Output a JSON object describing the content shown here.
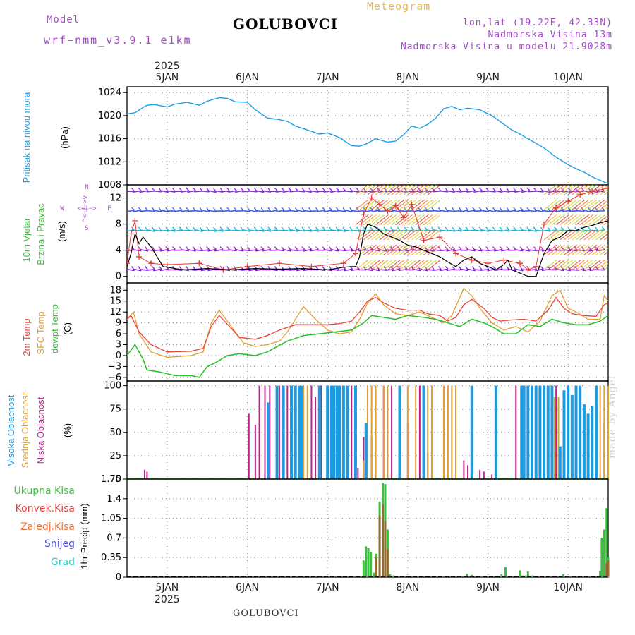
{
  "header": {
    "model_label": "Model",
    "model_value": "wrf−nmm_v3.9.1  e1km",
    "title": "GOLUBOVCI",
    "meteogram": "Meteogram",
    "coords": "lon,lat (19.22E, 42.33N)",
    "elevation": "Nadmorska Visina 13m",
    "model_elevation": "Nadmorska Visina u modelu 21.9028m",
    "footer_title": "GOLUBOVCI",
    "credit": "made by Angel"
  },
  "time_axis": {
    "year": "2025",
    "days": [
      "5JAN",
      "6JAN",
      "7JAN",
      "8JAN",
      "9JAN",
      "10JAN"
    ],
    "day_positions": [
      0.5,
      1.5,
      2.5,
      3.5,
      4.5,
      5.5
    ],
    "range_days": [
      0,
      6
    ]
  },
  "colors": {
    "pressure": "#1ea0e6",
    "wind_speed": "#000000",
    "gust": "#e83a3a",
    "temp_2m": "#e8453c",
    "sfc_temp": "#e0a030",
    "dewpoint": "#26c026",
    "cloud_high": "#1e9be0",
    "cloud_mid": "#e0a030",
    "cloud_low": "#c0208a",
    "precip_total": "#3cbf3c",
    "precip_conv": "#e84040",
    "precip_frz": "#f07030",
    "snow": "#5050e0",
    "hail": "#30c8c8",
    "grid": "#999999"
  },
  "chart_data": [
    {
      "type": "line",
      "panel": "pressure",
      "labels": [
        "Pritisak na nivou mora",
        "(hPa)"
      ],
      "yticks": [
        "1008",
        "1012",
        "1016",
        "1020",
        "1024"
      ],
      "ylim": [
        1008,
        1025
      ],
      "series": [
        {
          "x": [
            0.0,
            0.1,
            0.2,
            0.25,
            0.35,
            0.5,
            0.6,
            0.75,
            0.9,
            1.0,
            1.15,
            1.25,
            1.35,
            1.5,
            1.6,
            1.75,
            1.9,
            2.0,
            2.1,
            2.25,
            2.4,
            2.5,
            2.65,
            2.8,
            2.9,
            3.0,
            3.1,
            3.25,
            3.35,
            3.45,
            3.55,
            3.65,
            3.75,
            3.85,
            3.95,
            4.05,
            4.15,
            4.25,
            4.4,
            4.55,
            4.7,
            4.8,
            4.9,
            5.0,
            5.1,
            5.2,
            5.35,
            5.5,
            5.6,
            5.7,
            5.8,
            5.9,
            6.0
          ],
          "y": [
            1020.3,
            1020.5,
            1021.4,
            1021.8,
            1021.9,
            1021.5,
            1022.0,
            1022.3,
            1021.8,
            1022.5,
            1023.1,
            1023.0,
            1022.4,
            1022.3,
            1021.0,
            1019.6,
            1019.3,
            1019.0,
            1018.2,
            1017.5,
            1016.8,
            1017.0,
            1016.2,
            1014.8,
            1014.7,
            1015.2,
            1016.0,
            1015.4,
            1015.6,
            1016.7,
            1018.2,
            1017.8,
            1018.5,
            1019.6,
            1021.2,
            1021.6,
            1021.0,
            1021.3,
            1021.0,
            1020.0,
            1018.5,
            1017.5,
            1016.8,
            1016.0,
            1015.2,
            1014.4,
            1012.8,
            1011.5,
            1010.8,
            1010.2,
            1009.4,
            1008.8,
            1008.2
          ]
        }
      ]
    },
    {
      "type": "line",
      "panel": "wind",
      "labels": [
        "10m Vjetar",
        "Brzina i Pravac",
        "(m/s)"
      ],
      "compass": {
        "north": "N",
        "south": "S",
        "east": "E",
        "west": "W",
        "arrows_ns": "^<−|−>v",
        "arrows_we": "<−|−>"
      },
      "yticks": [
        "0",
        "4",
        "8",
        "12"
      ],
      "ylim": [
        -1,
        14
      ],
      "series": [
        {
          "name": "speed",
          "x": [
            0.0,
            0.05,
            0.1,
            0.15,
            0.2,
            0.3,
            0.45,
            0.7,
            1.0,
            1.3,
            1.6,
            1.9,
            2.2,
            2.5,
            2.7,
            2.8,
            2.85,
            2.9,
            2.95,
            3.0,
            3.1,
            3.2,
            3.3,
            3.4,
            3.5,
            3.6,
            3.7,
            3.8,
            3.9,
            4.0,
            4.1,
            4.2,
            4.3,
            4.4,
            4.5,
            4.6,
            4.7,
            4.75,
            4.8,
            4.9,
            5.0,
            5.1,
            5.2,
            5.3,
            5.4,
            5.5,
            5.6,
            5.7,
            5.8,
            5.9,
            6.0
          ],
          "y": [
            1.5,
            3.5,
            6.5,
            5.0,
            6.0,
            4.5,
            1.5,
            1.0,
            1.2,
            1.0,
            1.2,
            1.1,
            1.2,
            1.0,
            1.4,
            1.5,
            1.5,
            3.0,
            6.5,
            8.0,
            7.5,
            6.5,
            6.0,
            5.5,
            4.8,
            4.5,
            4.0,
            3.5,
            3.0,
            2.2,
            1.5,
            2.5,
            3.0,
            2.0,
            1.5,
            1.0,
            1.8,
            2.5,
            1.0,
            0.5,
            0.0,
            0.0,
            3.5,
            5.5,
            6.0,
            7.0,
            7.0,
            7.5,
            7.8,
            8.2,
            8.5
          ]
        },
        {
          "name": "gust",
          "x": [
            0.0,
            0.05,
            0.1,
            0.15,
            0.3,
            0.5,
            0.9,
            1.2,
            1.5,
            1.9,
            2.3,
            2.7,
            2.85,
            2.95,
            3.05,
            3.15,
            3.25,
            3.35,
            3.45,
            3.55,
            3.7,
            3.9,
            4.1,
            4.3,
            4.5,
            4.7,
            4.9,
            5.0,
            5.1,
            5.2,
            5.35,
            5.5,
            5.65,
            5.8,
            6.0
          ],
          "y": [
            2.0,
            6.5,
            8.5,
            3.0,
            2.0,
            1.8,
            2.0,
            1.0,
            1.5,
            2.0,
            1.5,
            2.0,
            3.5,
            9.5,
            12.0,
            11.0,
            10.0,
            10.8,
            9.0,
            11.0,
            5.5,
            6.0,
            3.5,
            2.5,
            2.0,
            2.5,
            2.0,
            1.0,
            1.5,
            8.0,
            10.5,
            11.5,
            12.5,
            13.0,
            13.5
          ]
        }
      ]
    },
    {
      "type": "line",
      "panel": "temperature",
      "labels": [
        "2m Temp",
        "SFC Temp",
        "dewpt Temp",
        "(C)"
      ],
      "yticks": [
        "−6",
        "−3",
        "0",
        "3",
        "6",
        "9",
        "12",
        "15",
        "18"
      ],
      "ylim": [
        -7,
        20
      ],
      "series": [
        {
          "name": "2m Temp",
          "x": [
            0.0,
            0.05,
            0.15,
            0.3,
            0.5,
            0.8,
            0.95,
            1.05,
            1.15,
            1.3,
            1.4,
            1.6,
            1.75,
            1.9,
            2.1,
            2.3,
            2.5,
            2.65,
            2.8,
            2.9,
            3.0,
            3.1,
            3.2,
            3.35,
            3.5,
            3.65,
            3.75,
            3.9,
            4.0,
            4.1,
            4.2,
            4.3,
            4.45,
            4.55,
            4.65,
            4.8,
            4.95,
            5.1,
            5.25,
            5.35,
            5.45,
            5.55,
            5.7,
            5.85,
            5.95,
            6.0
          ],
          "y": [
            10.0,
            11.0,
            6.5,
            3.0,
            1.0,
            1.2,
            2.0,
            8.0,
            11.0,
            7.5,
            5.0,
            4.5,
            5.5,
            7.0,
            8.5,
            8.5,
            8.5,
            8.8,
            9.5,
            12.0,
            15.0,
            16.0,
            14.5,
            13.0,
            12.5,
            12.5,
            11.5,
            11.0,
            9.5,
            10.5,
            14.0,
            15.5,
            13.0,
            10.5,
            9.5,
            9.8,
            10.0,
            9.5,
            12.5,
            16.0,
            13.0,
            11.5,
            11.0,
            10.8,
            14.0,
            14.5
          ]
        },
        {
          "name": "SFC Temp",
          "x": [
            0.0,
            0.08,
            0.15,
            0.3,
            0.5,
            0.8,
            0.95,
            1.05,
            1.15,
            1.3,
            1.45,
            1.6,
            1.75,
            1.9,
            2.0,
            2.2,
            2.35,
            2.5,
            2.65,
            2.8,
            2.9,
            3.0,
            3.1,
            3.2,
            3.35,
            3.5,
            3.65,
            3.8,
            3.95,
            4.05,
            4.2,
            4.3,
            4.4,
            4.55,
            4.7,
            4.85,
            5.0,
            5.15,
            5.3,
            5.4,
            5.5,
            5.6,
            5.75,
            5.9,
            5.95,
            6.0
          ],
          "y": [
            10.0,
            12.0,
            6.0,
            1.0,
            -0.5,
            0.0,
            1.0,
            9.0,
            12.5,
            8.0,
            3.5,
            2.5,
            3.0,
            4.0,
            6.5,
            13.5,
            10.0,
            7.0,
            6.0,
            6.5,
            10.0,
            14.5,
            17.0,
            14.0,
            11.5,
            11.0,
            12.0,
            10.5,
            9.0,
            11.0,
            18.5,
            16.5,
            13.0,
            9.0,
            7.0,
            8.0,
            6.5,
            9.5,
            16.5,
            18.0,
            13.0,
            12.0,
            10.0,
            10.0,
            16.5,
            15.0
          ]
        },
        {
          "name": "dewpt Temp",
          "x": [
            0.0,
            0.1,
            0.2,
            0.25,
            0.4,
            0.6,
            0.8,
            0.9,
            1.0,
            1.1,
            1.25,
            1.4,
            1.6,
            1.75,
            2.0,
            2.2,
            2.4,
            2.6,
            2.8,
            2.95,
            3.05,
            3.2,
            3.35,
            3.5,
            3.7,
            3.85,
            4.0,
            4.15,
            4.3,
            4.45,
            4.55,
            4.7,
            4.85,
            5.0,
            5.15,
            5.3,
            5.45,
            5.6,
            5.75,
            5.9,
            6.0
          ],
          "y": [
            0.0,
            3.0,
            -1.0,
            -4.0,
            -4.5,
            -5.5,
            -5.5,
            -6.0,
            -3.0,
            -2.0,
            0.0,
            0.5,
            0.0,
            1.0,
            4.0,
            5.5,
            6.0,
            6.5,
            7.0,
            9.0,
            11.0,
            10.5,
            10.0,
            11.0,
            10.5,
            10.0,
            9.0,
            8.0,
            10.0,
            9.0,
            8.0,
            6.0,
            6.0,
            8.5,
            8.0,
            10.0,
            9.0,
            8.5,
            8.5,
            9.5,
            11.0
          ]
        }
      ]
    },
    {
      "type": "bar",
      "panel": "cloud",
      "labels": [
        "Visoka Oblacnost",
        "Srednja Oblacnost",
        "Niska Oblacnost",
        "(%)"
      ],
      "yticks": [
        "0",
        "25",
        "50",
        "75",
        "100"
      ],
      "ylim": [
        0,
        105
      ],
      "series": [
        {
          "name": "Niska Oblacnost",
          "x": [
            0.22,
            0.25,
            1.52,
            1.6,
            1.65,
            1.72,
            1.78,
            1.9,
            2.0,
            2.2,
            2.3,
            2.35,
            2.42,
            2.5,
            2.65,
            2.8,
            2.88,
            2.95,
            3.05,
            3.1,
            3.2,
            3.3,
            3.4,
            3.5,
            3.65,
            3.75,
            3.95,
            4.0,
            4.2,
            4.25,
            4.3,
            4.4,
            4.45,
            4.55,
            4.85,
            4.95,
            5.2,
            5.25,
            5.3,
            5.35,
            5.5,
            5.95
          ],
          "y": [
            10,
            8,
            70,
            58,
            100,
            100,
            100,
            100,
            100,
            100,
            100,
            88,
            100,
            100,
            100,
            100,
            12,
            45,
            45,
            100,
            100,
            100,
            28,
            60,
            100,
            28,
            100,
            100,
            20,
            15,
            10,
            10,
            8,
            5,
            100,
            100,
            100,
            100,
            100,
            100,
            75,
            60
          ]
        },
        {
          "name": "Srednja Oblacnost",
          "x": [
            1.88,
            2.2,
            2.25,
            2.95,
            3.0,
            3.05,
            3.1,
            3.2,
            3.25,
            3.4,
            3.5,
            3.6,
            3.7,
            3.75,
            3.8,
            3.95,
            4.0,
            4.05,
            4.1,
            5.33,
            5.38,
            5.85,
            5.9,
            5.95,
            6.0
          ],
          "y": [
            100,
            100,
            100,
            20,
            100,
            100,
            100,
            100,
            100,
            100,
            100,
            100,
            100,
            100,
            100,
            100,
            100,
            100,
            100,
            88,
            88,
            100,
            100,
            100,
            100
          ]
        },
        {
          "name": "Visoka Oblacnost",
          "x": [
            1.76,
            1.87,
            1.95,
            2.05,
            2.1,
            2.15,
            2.18,
            2.4,
            2.5,
            2.55,
            2.58,
            2.62,
            2.65,
            2.7,
            2.75,
            2.85,
            2.98,
            3.4,
            3.7,
            4.3,
            4.6,
            4.92,
            4.95,
            5.0,
            5.05,
            5.1,
            5.15,
            5.2,
            5.25,
            5.3,
            5.4,
            5.45,
            5.5,
            5.55,
            5.6,
            5.65,
            5.7,
            5.75,
            5.8,
            5.85
          ],
          "y": [
            82,
            100,
            100,
            100,
            100,
            100,
            100,
            100,
            100,
            100,
            100,
            100,
            100,
            100,
            100,
            100,
            60,
            100,
            100,
            100,
            100,
            100,
            100,
            100,
            100,
            100,
            100,
            100,
            100,
            100,
            35,
            95,
            100,
            90,
            100,
            100,
            80,
            70,
            78,
            100
          ]
        }
      ]
    },
    {
      "type": "bar",
      "panel": "precipitation",
      "labels": [
        "Ukupna Kisa",
        "Konvek.Kisa",
        "Zaledj.Kisa",
        "Snijeg",
        "Grad",
        "1hr Precip (mm)"
      ],
      "yticks": [
        "0",
        "0.35",
        "0.7",
        "1.05",
        "1.4",
        "1.75"
      ],
      "ylim": [
        0,
        1.75
      ],
      "series": [
        {
          "name": "Ukupna Kisa",
          "x": [
            2.95,
            2.98,
            3.01,
            3.04,
            3.08,
            3.11,
            3.15,
            3.19,
            3.22,
            3.25,
            3.28,
            3.32,
            4.24,
            4.3,
            4.67,
            4.72,
            4.9,
            4.93,
            4.97,
            5.0,
            5.06,
            5.44,
            5.49,
            5.9,
            5.92,
            5.95,
            5.98,
            6.0
          ],
          "y": [
            0.3,
            0.55,
            0.52,
            0.45,
            0.08,
            0.42,
            1.35,
            1.68,
            1.66,
            0.85,
            0.05,
            0.03,
            0.06,
            0.04,
            0.05,
            0.18,
            0.12,
            0.03,
            0.03,
            0.1,
            0.03,
            0.05,
            0.02,
            0.11,
            0.7,
            0.85,
            1.23,
            0.35
          ]
        },
        {
          "name": "Konvek.Kisa",
          "x": [
            3.11,
            3.15,
            3.19,
            3.22,
            3.25,
            5.98,
            6.0
          ],
          "y": [
            0.35,
            1.1,
            1.3,
            1.0,
            0.5,
            0.25,
            0.3
          ]
        }
      ]
    }
  ]
}
